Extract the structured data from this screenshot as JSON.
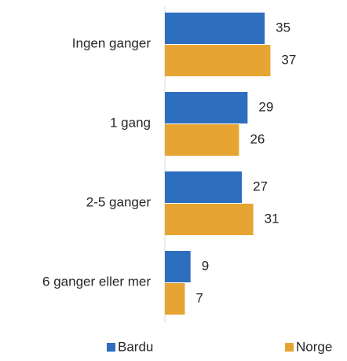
{
  "chart_data": {
    "type": "bar",
    "orientation": "horizontal",
    "categories": [
      "Ingen ganger",
      "1 gang",
      "2-5 ganger",
      "6 ganger eller mer"
    ],
    "series": [
      {
        "name": "Bardu",
        "color": "#2e6ebf",
        "values": [
          35,
          29,
          27,
          9
        ]
      },
      {
        "name": "Norge",
        "color": "#e6a532",
        "values": [
          37,
          26,
          31,
          7
        ]
      }
    ],
    "xlim": [
      0,
      60
    ],
    "legend": "bottom"
  }
}
